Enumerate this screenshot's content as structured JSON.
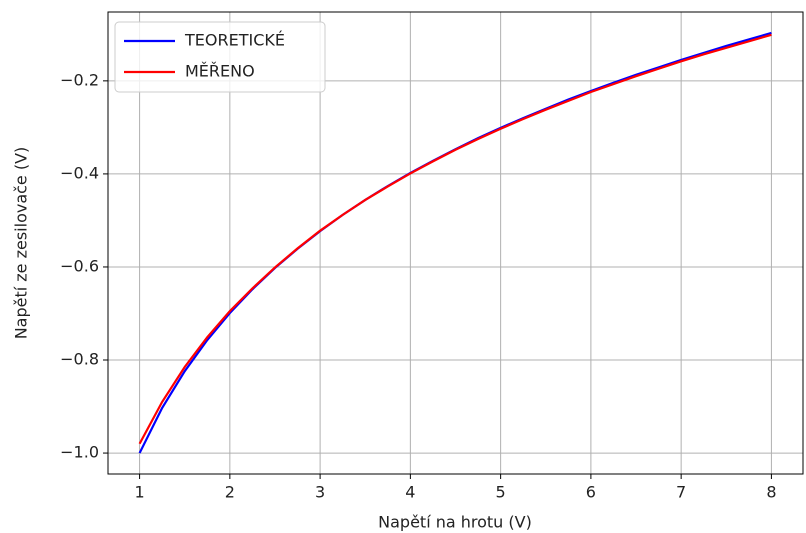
{
  "chart_data": {
    "type": "line",
    "xlabel": "Napětí na hrotu (V)",
    "ylabel": "Napětí ze zesilovače (V)",
    "x": [
      1,
      1.25,
      1.5,
      1.75,
      2,
      2.25,
      2.5,
      2.75,
      3,
      3.25,
      3.5,
      3.75,
      4,
      4.25,
      4.5,
      4.75,
      5,
      5.25,
      5.5,
      5.75,
      6,
      6.25,
      6.5,
      6.75,
      7,
      7.25,
      7.5,
      7.75,
      8
    ],
    "series": [
      {
        "name": "TEORETICKÉ",
        "color": "#0000ff",
        "values": [
          -1,
          -0.903,
          -0.824,
          -0.757,
          -0.699,
          -0.648,
          -0.602,
          -0.561,
          -0.523,
          -0.488,
          -0.456,
          -0.426,
          -0.398,
          -0.372,
          -0.347,
          -0.323,
          -0.301,
          -0.28,
          -0.26,
          -0.24,
          -0.222,
          -0.204,
          -0.187,
          -0.171,
          -0.155,
          -0.14,
          -0.125,
          -0.111,
          -0.097
        ]
      },
      {
        "name": "MĚŘENO",
        "color": "#ff0000",
        "values": [
          -0.98,
          -0.89,
          -0.815,
          -0.751,
          -0.695,
          -0.646,
          -0.601,
          -0.56,
          -0.522,
          -0.488,
          -0.456,
          -0.427,
          -0.399,
          -0.373,
          -0.348,
          -0.325,
          -0.303,
          -0.282,
          -0.262,
          -0.243,
          -0.224,
          -0.207,
          -0.19,
          -0.174,
          -0.158,
          -0.143,
          -0.129,
          -0.115,
          -0.101
        ]
      }
    ],
    "xlim": [
      0.65,
      8.35
    ],
    "ylim": [
      -1.045,
      -0.052
    ],
    "xticks": [
      1,
      2,
      3,
      4,
      5,
      6,
      7,
      8
    ],
    "yticks": [
      {
        "value": -1.0,
        "label": "−1.0"
      },
      {
        "value": -0.8,
        "label": "−0.8"
      },
      {
        "value": -0.6,
        "label": "−0.6"
      },
      {
        "value": -0.4,
        "label": "−0.4"
      },
      {
        "value": -0.2,
        "label": "−0.2"
      }
    ],
    "grid": true,
    "legend": "upper left"
  }
}
